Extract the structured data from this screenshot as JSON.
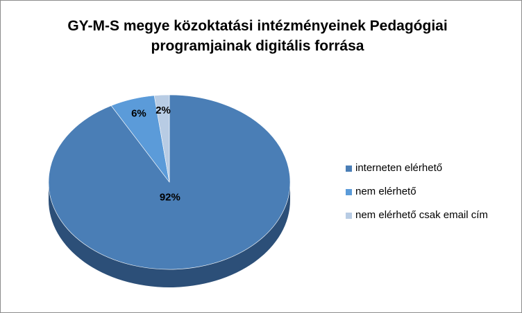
{
  "chart_data": {
    "type": "pie",
    "title_lines": [
      "GY-M-S megye közoktatási intézményeinek Pedagógiai",
      "programjainak  digitális forrása"
    ],
    "slices": [
      {
        "label": "interneten elérhető",
        "value": 92,
        "data_label": "92%",
        "color": "#4a7eb6",
        "side_color": "#2c4f78"
      },
      {
        "label": "nem elérhető",
        "value": 6,
        "data_label": "6%",
        "color": "#5b9bd9",
        "side_color": "#3a6fa6"
      },
      {
        "label": "nem elérhető csak email cím",
        "value": 2,
        "data_label": "2%",
        "color": "#b8cce4",
        "side_color": "#8aa3c2"
      }
    ],
    "legend_position": "right",
    "style": "3d-pie"
  }
}
